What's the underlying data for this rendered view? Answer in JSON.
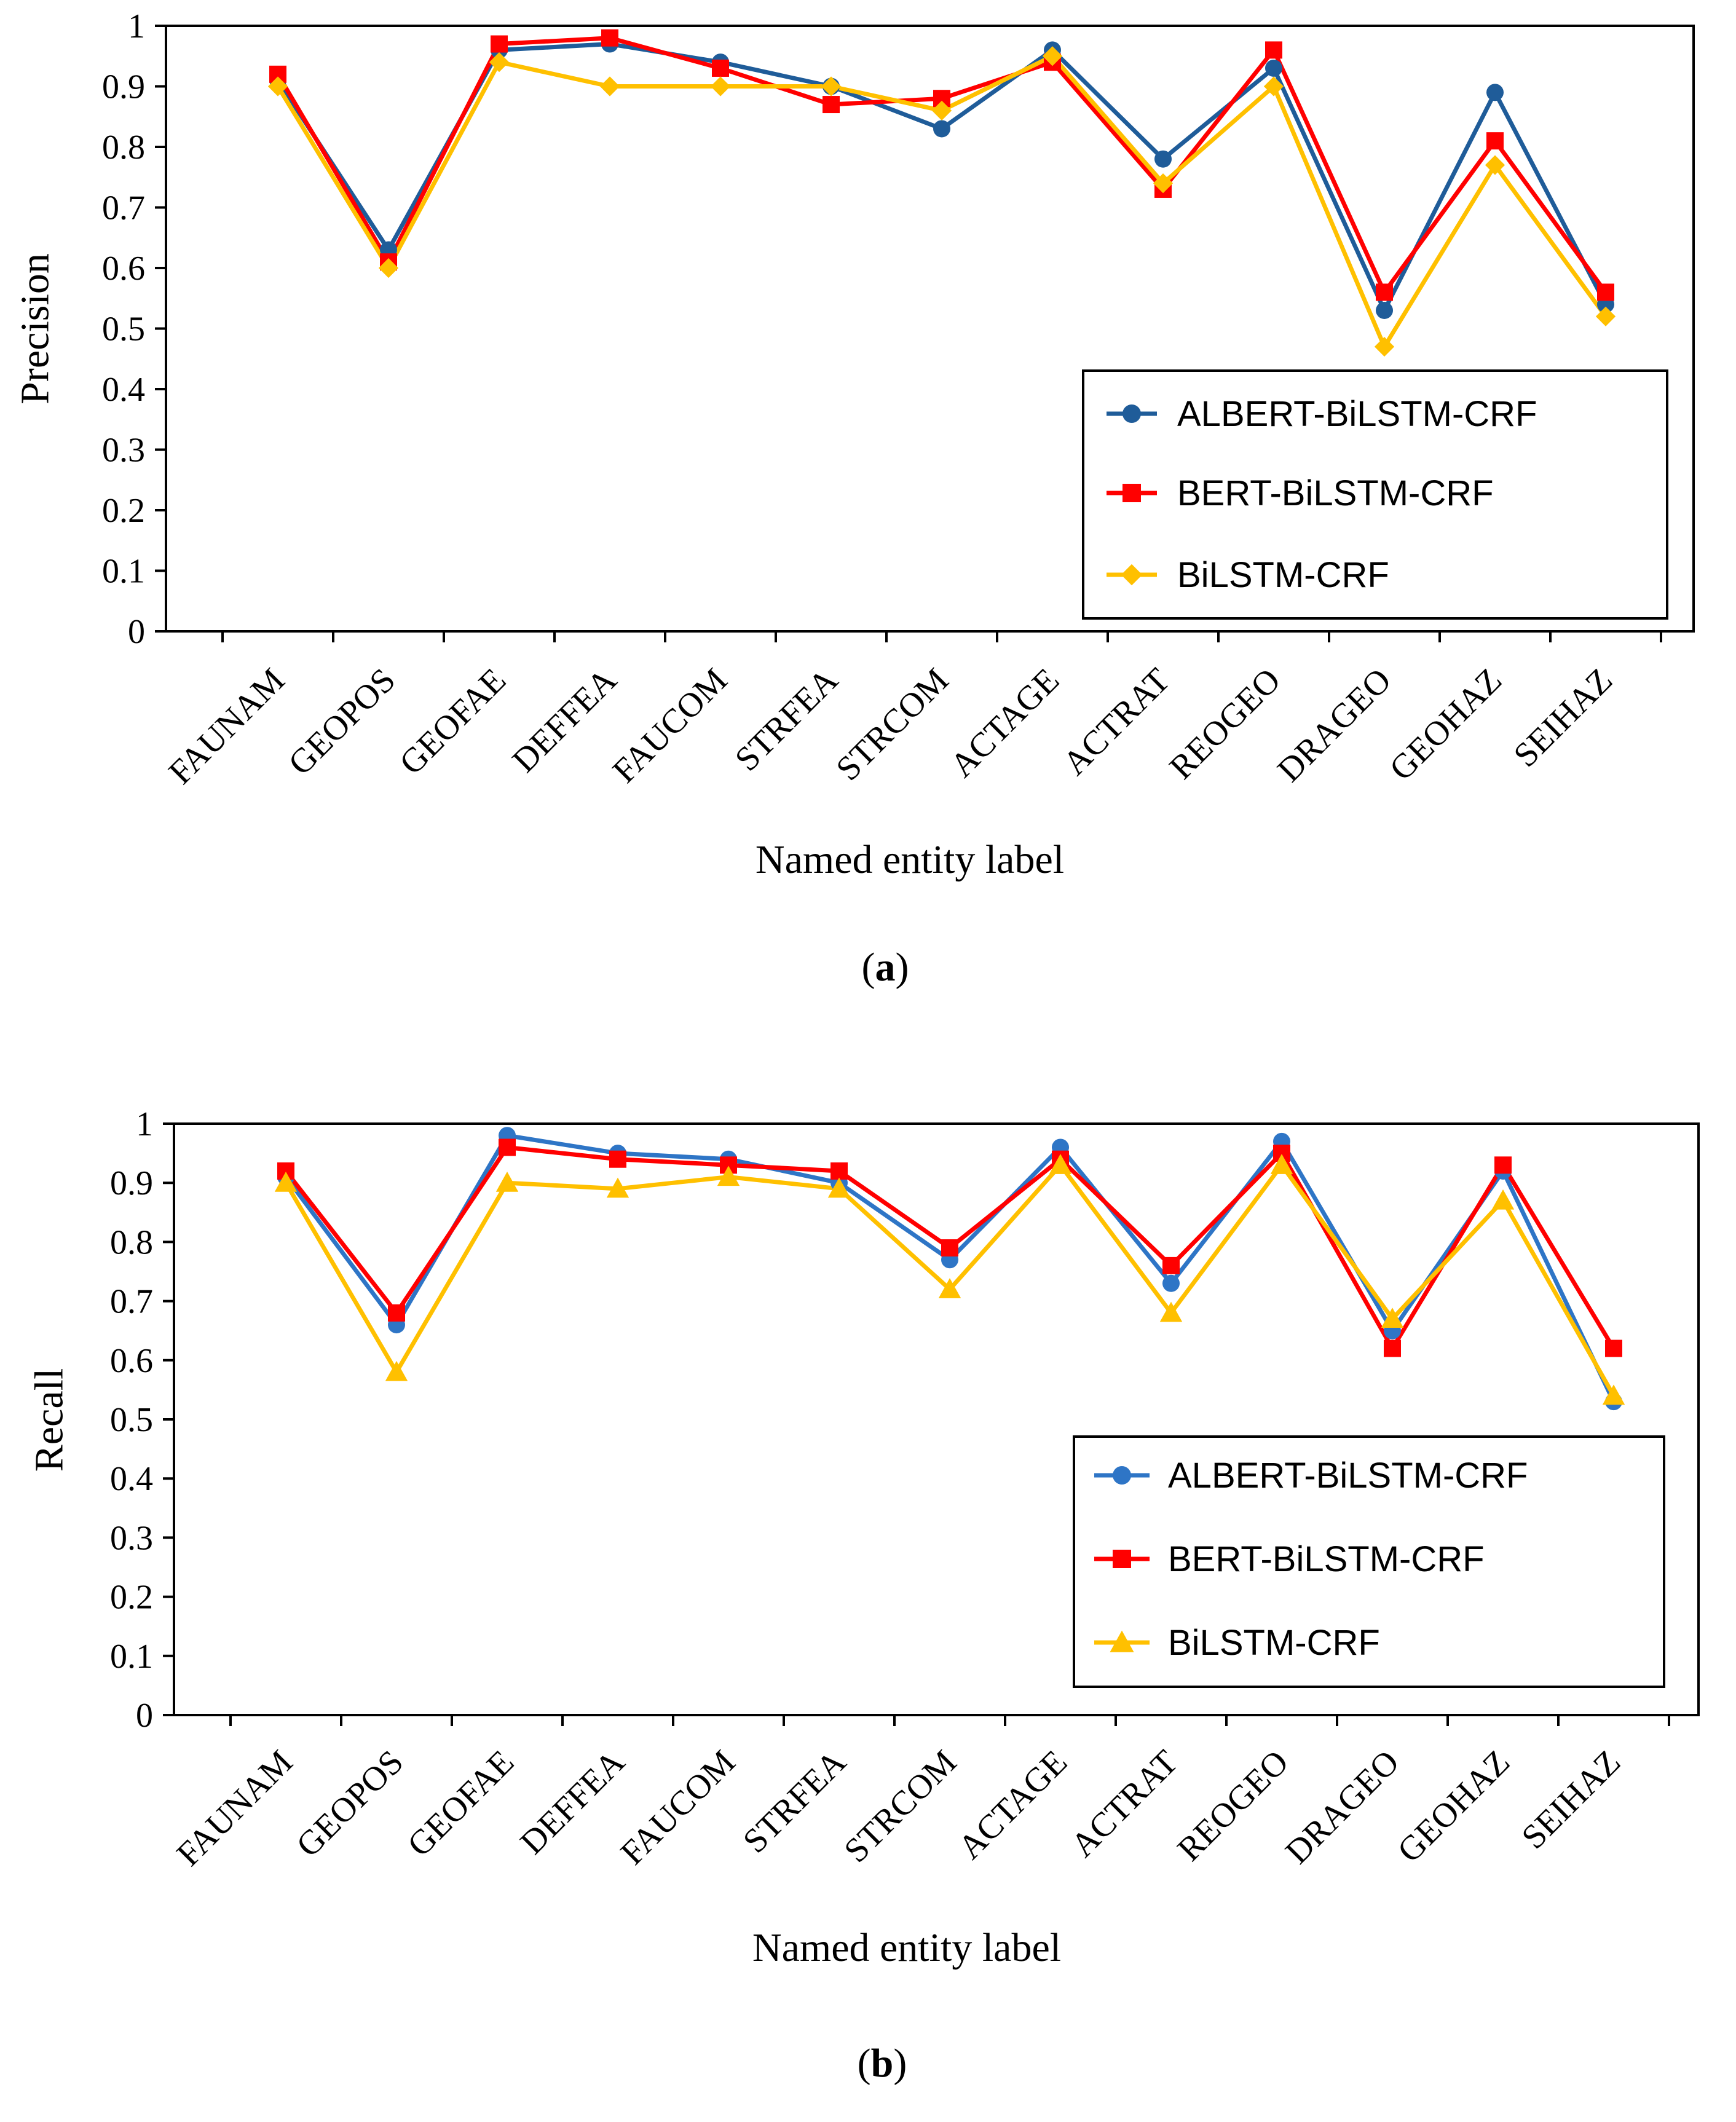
{
  "chart_data": [
    {
      "type": "line",
      "panel_label": "a",
      "xlabel": "Named entity label",
      "ylabel": "Precision",
      "ylim": [
        0,
        1
      ],
      "yticks": [
        0,
        0.1,
        0.2,
        0.3,
        0.4,
        0.5,
        0.6,
        0.7,
        0.8,
        0.9,
        1
      ],
      "ytick_labels": [
        "0",
        "0.1",
        "0.2",
        "0.3",
        "0.4",
        "0.5",
        "0.6",
        "0.7",
        "0.8",
        "0.9",
        "1"
      ],
      "grid": false,
      "legend_position": "center-right",
      "categories": [
        "FAUNAM",
        "GEOPOS",
        "GEOFAE",
        "DEFFEA",
        "FAUCOM",
        "STRFEA",
        "STRCOM",
        "ACTAGE",
        "ACTRAT",
        "REOGEO",
        "DRAGEO",
        "GEOHAZ",
        "SEIHAZ"
      ],
      "series": [
        {
          "name": "ALBERT-BiLSTM-CRF",
          "color": "#1F5C99",
          "marker": "circle",
          "values": [
            0.91,
            0.63,
            0.96,
            0.97,
            0.94,
            0.9,
            0.83,
            0.96,
            0.78,
            0.93,
            0.53,
            0.89,
            0.54
          ]
        },
        {
          "name": "BERT-BiLSTM-CRF",
          "color": "#FF0000",
          "marker": "square",
          "values": [
            0.92,
            0.61,
            0.97,
            0.98,
            0.93,
            0.87,
            0.88,
            0.94,
            0.73,
            0.96,
            0.56,
            0.81,
            0.56
          ]
        },
        {
          "name": "BiLSTM-CRF",
          "color": "#FFC000",
          "marker": "diamond",
          "values": [
            0.9,
            0.6,
            0.94,
            0.9,
            0.9,
            0.9,
            0.86,
            0.95,
            0.74,
            0.9,
            0.47,
            0.77,
            0.52
          ]
        }
      ]
    },
    {
      "type": "line",
      "panel_label": "b",
      "xlabel": "Named entity label",
      "ylabel": "Recall",
      "ylim": [
        0,
        1
      ],
      "yticks": [
        0,
        0.1,
        0.2,
        0.3,
        0.4,
        0.5,
        0.6,
        0.7,
        0.8,
        0.9,
        1
      ],
      "ytick_labels": [
        "0",
        "0.1",
        "0.2",
        "0.3",
        "0.4",
        "0.5",
        "0.6",
        "0.7",
        "0.8",
        "0.9",
        "1"
      ],
      "grid": false,
      "legend_position": "center-right",
      "categories": [
        "FAUNAM",
        "GEOPOS",
        "GEOFAE",
        "DEFFEA",
        "FAUCOM",
        "STRFEA",
        "STRCOM",
        "ACTAGE",
        "ACTRAT",
        "REOGEO",
        "DRAGEO",
        "GEOHAZ",
        "SEIHAZ"
      ],
      "series": [
        {
          "name": "ALBERT-BiLSTM-CRF",
          "color": "#2E75C6",
          "marker": "circle",
          "values": [
            0.91,
            0.66,
            0.98,
            0.95,
            0.94,
            0.9,
            0.77,
            0.96,
            0.73,
            0.97,
            0.65,
            0.92,
            0.53
          ]
        },
        {
          "name": "BERT-BiLSTM-CRF",
          "color": "#FF0000",
          "marker": "square",
          "values": [
            0.92,
            0.68,
            0.96,
            0.94,
            0.93,
            0.92,
            0.79,
            0.94,
            0.76,
            0.95,
            0.62,
            0.93,
            0.62
          ]
        },
        {
          "name": "BiLSTM-CRF",
          "color": "#FFC000",
          "marker": "triangle",
          "values": [
            0.9,
            0.58,
            0.9,
            0.89,
            0.91,
            0.89,
            0.72,
            0.93,
            0.68,
            0.93,
            0.67,
            0.87,
            0.54
          ]
        }
      ]
    }
  ]
}
